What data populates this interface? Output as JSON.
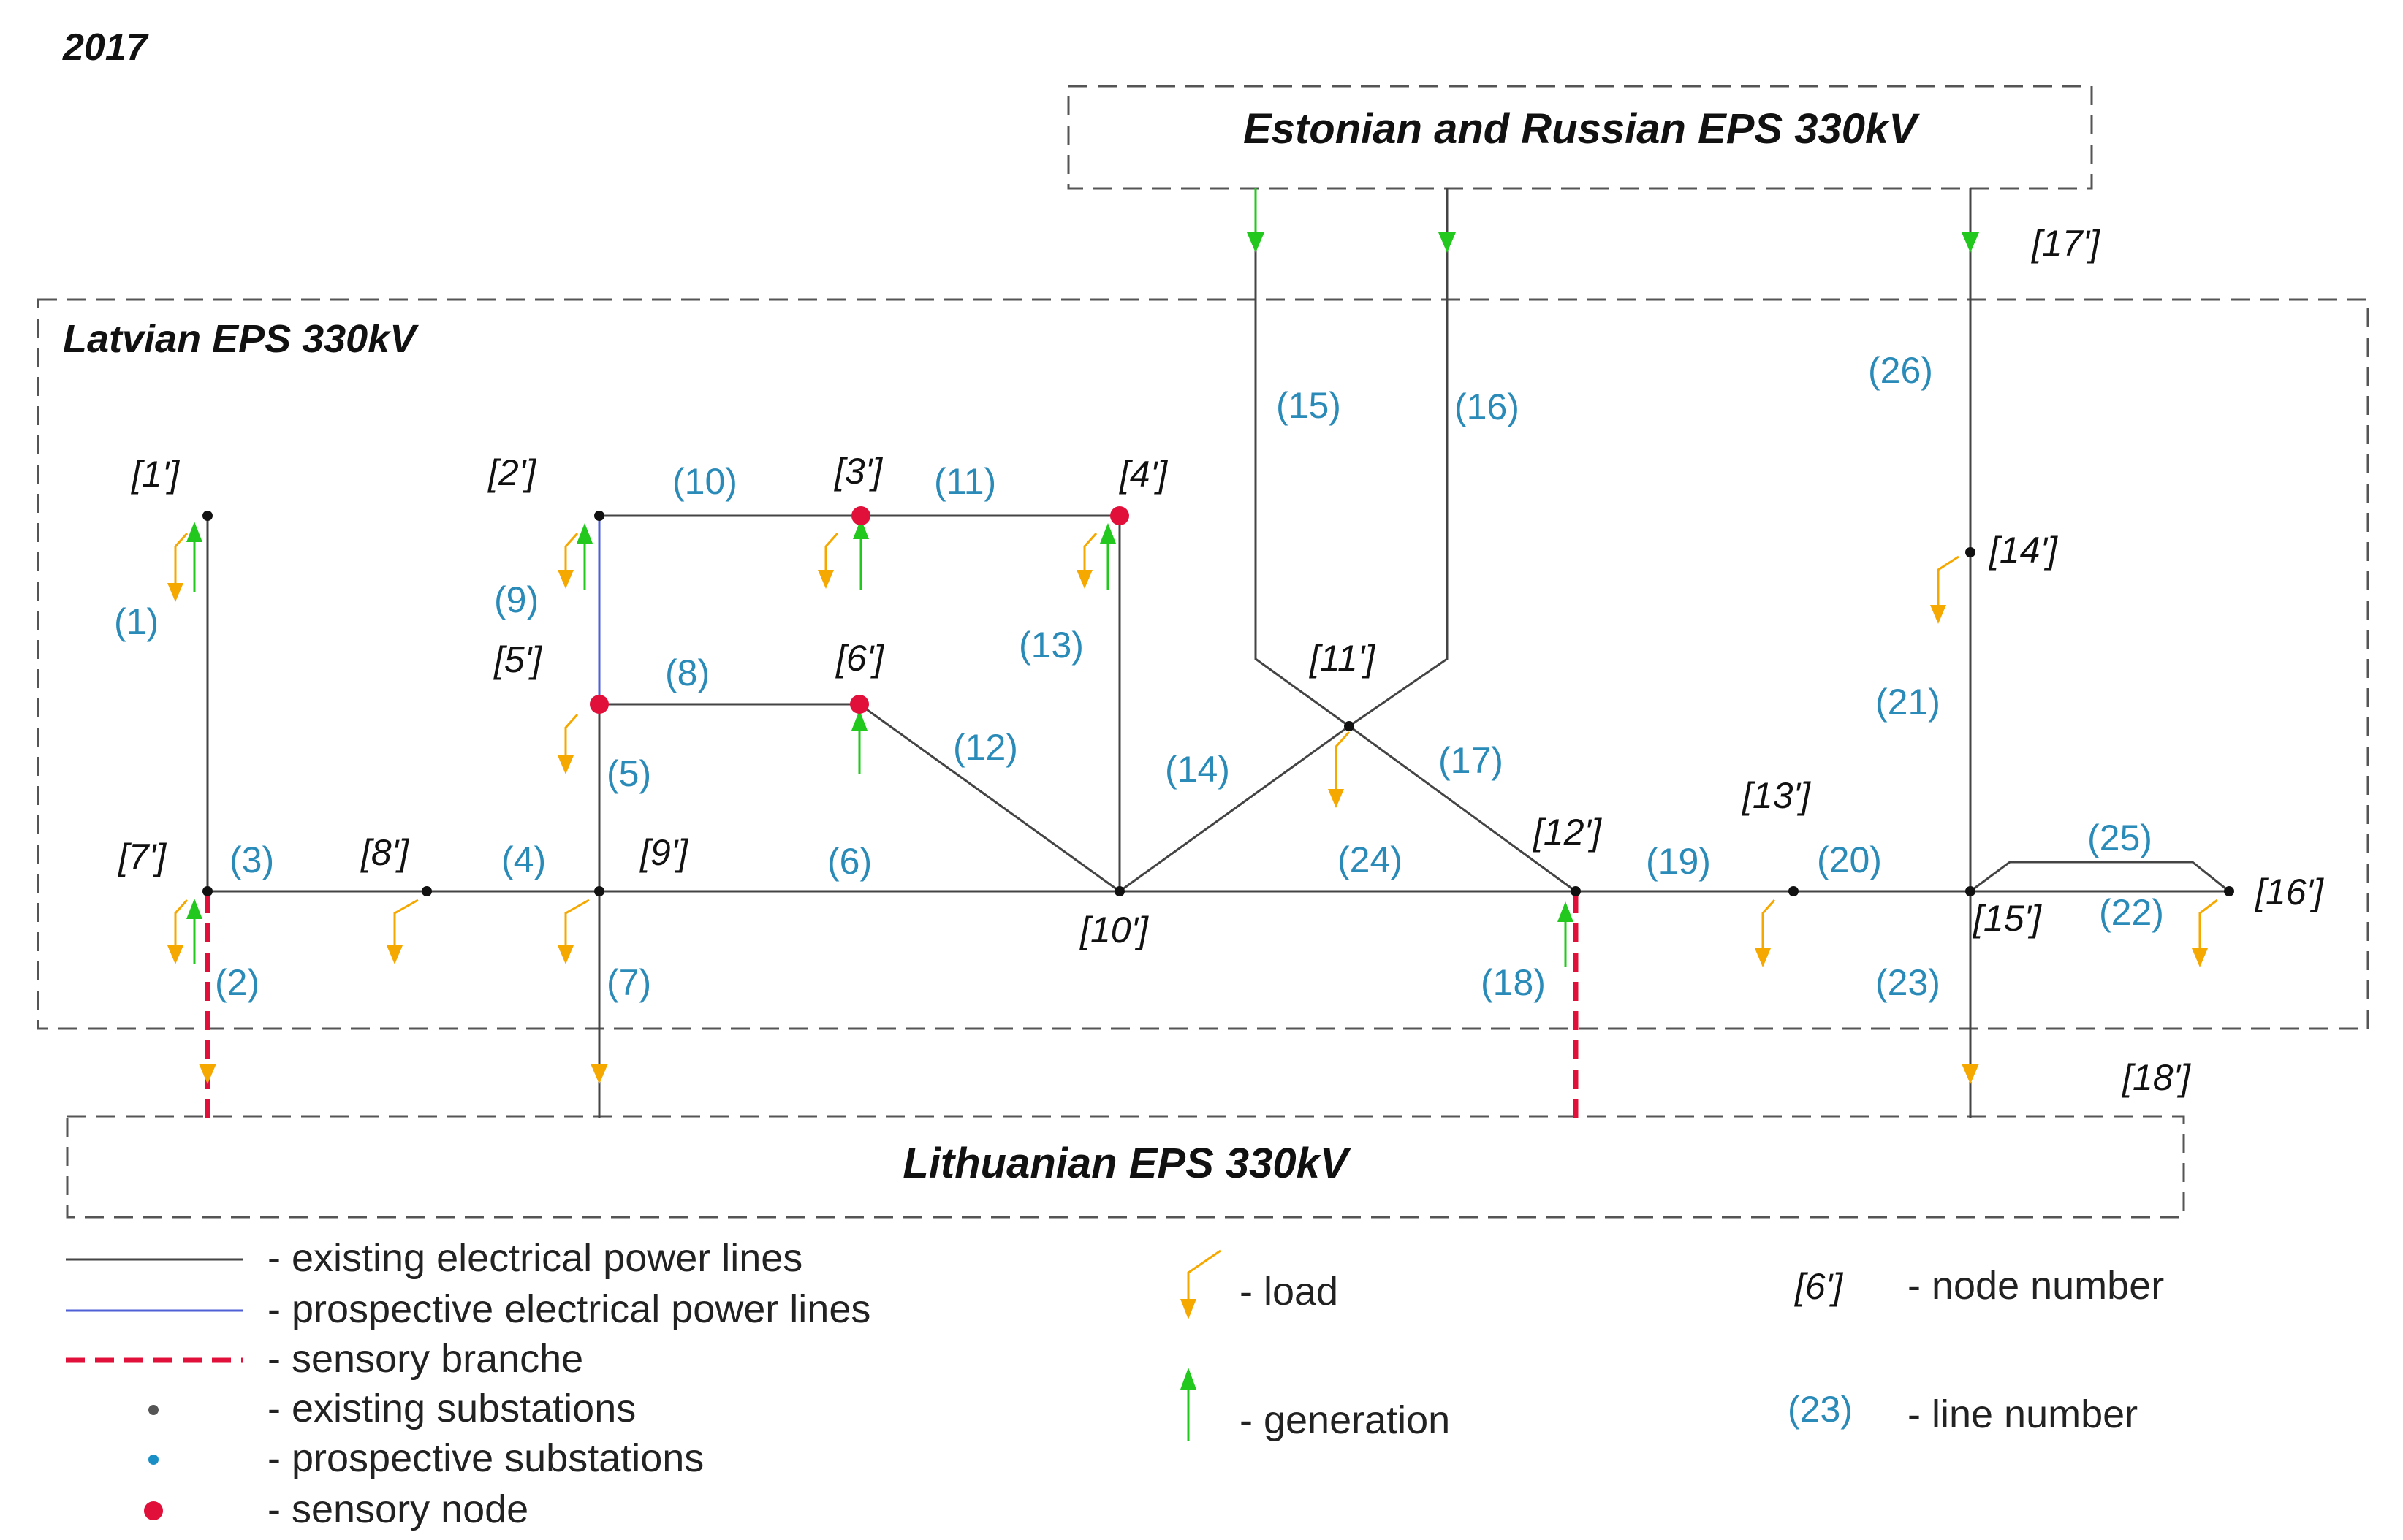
{
  "year": "2017",
  "colors": {
    "line": "#444444",
    "prospective": "#4f5fd6",
    "sensory": "#e0103a",
    "load": "#f5a800",
    "generation": "#22c81e",
    "line_label": "#2a8ab8",
    "prospective_substation": "#1a8fc6"
  },
  "regions": {
    "estonian_russian": "Estonian  and Russian EPS 330kV",
    "latvian": "Latvian EPS 330kV",
    "lithuanian": "Lithuanian EPS 330kV"
  },
  "nodes": [
    {
      "id": "1",
      "label": "[1']",
      "kind": "existing",
      "load": true,
      "generation": true
    },
    {
      "id": "2",
      "label": "[2']",
      "kind": "existing",
      "load": true,
      "generation": true
    },
    {
      "id": "3",
      "label": "[3']",
      "kind": "sensory",
      "load": true,
      "generation": true
    },
    {
      "id": "4",
      "label": "[4']",
      "kind": "sensory",
      "load": true,
      "generation": true
    },
    {
      "id": "5",
      "label": "[5']",
      "kind": "sensory",
      "load": true,
      "generation": false
    },
    {
      "id": "6",
      "label": "[6']",
      "kind": "sensory",
      "load": false,
      "generation": true
    },
    {
      "id": "7",
      "label": "[7']",
      "kind": "existing",
      "load": true,
      "generation": true
    },
    {
      "id": "8",
      "label": "[8']",
      "kind": "existing",
      "load": true,
      "generation": false
    },
    {
      "id": "9",
      "label": "[9']",
      "kind": "existing",
      "load": true,
      "generation": false
    },
    {
      "id": "10",
      "label": "[10']",
      "kind": "existing",
      "load": false,
      "generation": false
    },
    {
      "id": "11",
      "label": "[11']",
      "kind": "existing",
      "load": true,
      "generation": false
    },
    {
      "id": "12",
      "label": "[12']",
      "kind": "existing",
      "load": false,
      "generation": true
    },
    {
      "id": "13",
      "label": "[13']",
      "kind": "existing",
      "load": true,
      "generation": false
    },
    {
      "id": "14",
      "label": "[14']",
      "kind": "existing",
      "load": true,
      "generation": false
    },
    {
      "id": "15",
      "label": "[15']",
      "kind": "existing",
      "load": false,
      "generation": false
    },
    {
      "id": "16",
      "label": "[16']",
      "kind": "existing",
      "load": true,
      "generation": false
    },
    {
      "id": "17",
      "label": "[17']",
      "kind": "external",
      "load": false,
      "generation": true
    },
    {
      "id": "18",
      "label": "[18']",
      "kind": "external",
      "load": true,
      "generation": false
    }
  ],
  "lines": [
    {
      "label": "(1)",
      "from": "1",
      "to": "7",
      "kind": "existing"
    },
    {
      "label": "(2)",
      "from": "7",
      "to": "Lithuanian EPS",
      "kind": "sensory"
    },
    {
      "label": "(3)",
      "from": "7",
      "to": "8",
      "kind": "existing"
    },
    {
      "label": "(4)",
      "from": "8",
      "to": "9",
      "kind": "existing"
    },
    {
      "label": "(5)",
      "from": "5",
      "to": "9",
      "kind": "existing"
    },
    {
      "label": "(6)",
      "from": "9",
      "to": "10",
      "kind": "existing"
    },
    {
      "label": "(7)",
      "from": "9",
      "to": "Lithuanian EPS",
      "kind": "existing"
    },
    {
      "label": "(8)",
      "from": "5",
      "to": "6",
      "kind": "existing"
    },
    {
      "label": "(9)",
      "from": "2",
      "to": "5",
      "kind": "prospective"
    },
    {
      "label": "(10)",
      "from": "2",
      "to": "3",
      "kind": "existing"
    },
    {
      "label": "(11)",
      "from": "3",
      "to": "4",
      "kind": "existing"
    },
    {
      "label": "(12)",
      "from": "6",
      "to": "10",
      "kind": "existing"
    },
    {
      "label": "(13)",
      "from": "4",
      "to": "10",
      "kind": "existing"
    },
    {
      "label": "(14)",
      "from": "10",
      "to": "11",
      "kind": "existing"
    },
    {
      "label": "(15)",
      "from": "Estonian and Russian EPS",
      "to": "11",
      "kind": "existing"
    },
    {
      "label": "(16)",
      "from": "Estonian and Russian EPS",
      "to": "11",
      "kind": "existing"
    },
    {
      "label": "(17)",
      "from": "11",
      "to": "12",
      "kind": "existing"
    },
    {
      "label": "(18)",
      "from": "12",
      "to": "Lithuanian EPS",
      "kind": "sensory"
    },
    {
      "label": "(19)",
      "from": "12",
      "to": "13",
      "kind": "existing"
    },
    {
      "label": "(20)",
      "from": "13",
      "to": "15",
      "kind": "existing"
    },
    {
      "label": "(21)",
      "from": "14",
      "to": "15",
      "kind": "existing"
    },
    {
      "label": "(22)",
      "from": "15",
      "to": "16",
      "kind": "existing"
    },
    {
      "label": "(23)",
      "from": "15",
      "to": "18",
      "kind": "existing"
    },
    {
      "label": "(24)",
      "from": "10",
      "to": "12",
      "kind": "existing"
    },
    {
      "label": "(25)",
      "from": "15",
      "to": "16",
      "kind": "existing"
    },
    {
      "label": "(26)",
      "from": "17",
      "to": "14",
      "kind": "existing"
    }
  ],
  "legend": {
    "existing_lines": "- existing electrical power lines",
    "prospective_lines": "- prospective electrical power lines",
    "sensory_branch": "- sensory branche",
    "existing_substations": "- existing substations",
    "prospective_substations": "- prospective substations",
    "sensory_node": "- sensory node",
    "load": "- load",
    "generation": "- generation",
    "node_number_example": "[6']",
    "node_number": "- node number",
    "line_number_example": "(23)",
    "line_number": "- line number"
  }
}
